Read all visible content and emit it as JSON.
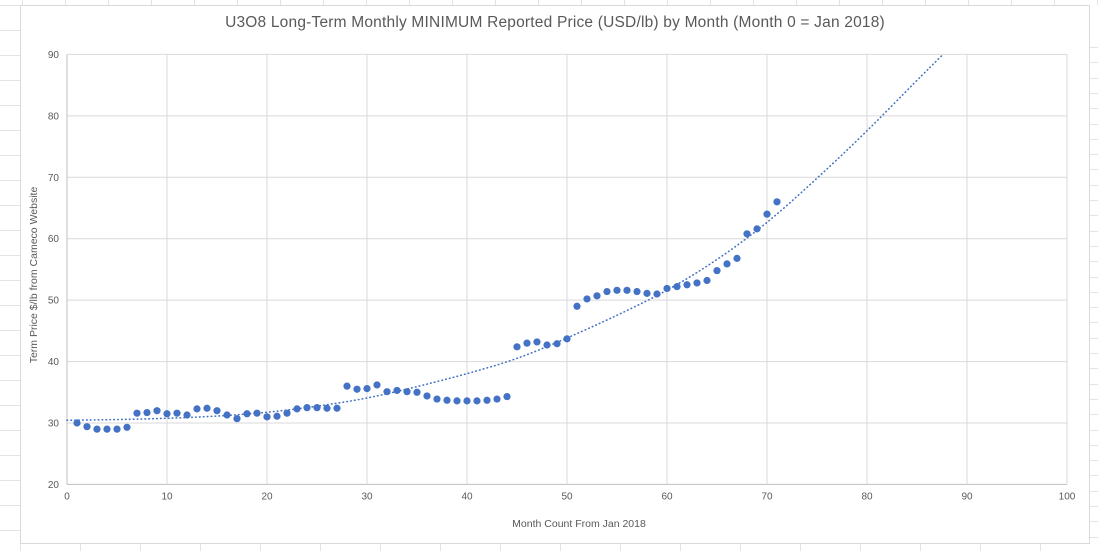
{
  "chart_data": {
    "type": "scatter",
    "title": "U3O8 Long-Term Monthly MINIMUM Reported Price (USD/lb) by Month (Month 0 = Jan 2018)",
    "xlabel": "Month Count From Jan 2018",
    "ylabel": "Term Price $/lb from Cameco Website",
    "xlim": [
      0,
      100
    ],
    "ylim": [
      20,
      90
    ],
    "xticks": [
      0,
      10,
      20,
      30,
      40,
      50,
      60,
      70,
      80,
      90,
      100
    ],
    "yticks": [
      20,
      30,
      40,
      50,
      60,
      70,
      80,
      90
    ],
    "grid": true,
    "legend": "none",
    "marker_color": "#4472C4",
    "trendline_color": "#4472C4",
    "gridline_color": "#d9d9d9",
    "axis_color": "#bfbfbf",
    "text_color": "#595959",
    "points": [
      [
        1,
        30.0
      ],
      [
        2,
        29.4
      ],
      [
        3,
        29.0
      ],
      [
        4,
        29.0
      ],
      [
        5,
        29.0
      ],
      [
        6,
        29.3
      ],
      [
        7,
        31.6
      ],
      [
        8,
        31.7
      ],
      [
        9,
        32.0
      ],
      [
        10,
        31.5
      ],
      [
        11,
        31.6
      ],
      [
        12,
        31.3
      ],
      [
        13,
        32.3
      ],
      [
        14,
        32.4
      ],
      [
        15,
        32.0
      ],
      [
        16,
        31.3
      ],
      [
        17,
        30.7
      ],
      [
        18,
        31.5
      ],
      [
        19,
        31.6
      ],
      [
        20,
        31.0
      ],
      [
        21,
        31.1
      ],
      [
        22,
        31.6
      ],
      [
        23,
        32.3
      ],
      [
        24,
        32.5
      ],
      [
        25,
        32.5
      ],
      [
        26,
        32.4
      ],
      [
        27,
        32.4
      ],
      [
        28,
        36.0
      ],
      [
        29,
        35.5
      ],
      [
        30,
        35.6
      ],
      [
        31,
        36.2
      ],
      [
        32,
        35.1
      ],
      [
        33,
        35.3
      ],
      [
        34,
        35.1
      ],
      [
        35,
        35.0
      ],
      [
        36,
        34.4
      ],
      [
        37,
        33.9
      ],
      [
        38,
        33.7
      ],
      [
        39,
        33.6
      ],
      [
        40,
        33.6
      ],
      [
        41,
        33.6
      ],
      [
        42,
        33.7
      ],
      [
        43,
        33.9
      ],
      [
        44,
        34.3
      ],
      [
        45,
        42.4
      ],
      [
        46,
        43.0
      ],
      [
        47,
        43.2
      ],
      [
        48,
        42.7
      ],
      [
        49,
        42.9
      ],
      [
        50,
        43.7
      ],
      [
        51,
        49.0
      ],
      [
        52,
        50.2
      ],
      [
        53,
        50.7
      ],
      [
        54,
        51.4
      ],
      [
        55,
        51.6
      ],
      [
        56,
        51.6
      ],
      [
        57,
        51.4
      ],
      [
        58,
        51.1
      ],
      [
        59,
        51.0
      ],
      [
        60,
        51.9
      ],
      [
        61,
        52.2
      ],
      [
        62,
        52.5
      ],
      [
        63,
        52.8
      ],
      [
        64,
        53.2
      ],
      [
        65,
        54.8
      ],
      [
        66,
        55.9
      ],
      [
        67,
        56.8
      ],
      [
        68,
        60.8
      ],
      [
        69,
        61.6
      ],
      [
        70,
        64.0
      ],
      [
        71,
        66.0
      ]
    ],
    "trendline": {
      "style": "dotted",
      "points": [
        [
          0,
          30.45
        ],
        [
          5,
          30.55
        ],
        [
          10,
          30.75
        ],
        [
          15,
          31.1
        ],
        [
          20,
          31.7
        ],
        [
          25,
          32.7
        ],
        [
          30,
          34.0
        ],
        [
          35,
          35.9
        ],
        [
          40,
          38.0
        ],
        [
          45,
          40.4
        ],
        [
          50,
          43.8
        ],
        [
          55,
          47.5
        ],
        [
          60,
          51.5
        ],
        [
          65,
          56.5
        ],
        [
          70,
          62.5
        ],
        [
          75,
          69.8
        ],
        [
          80,
          77.5
        ],
        [
          85,
          85.8
        ],
        [
          87.6,
          90.0
        ]
      ]
    }
  }
}
